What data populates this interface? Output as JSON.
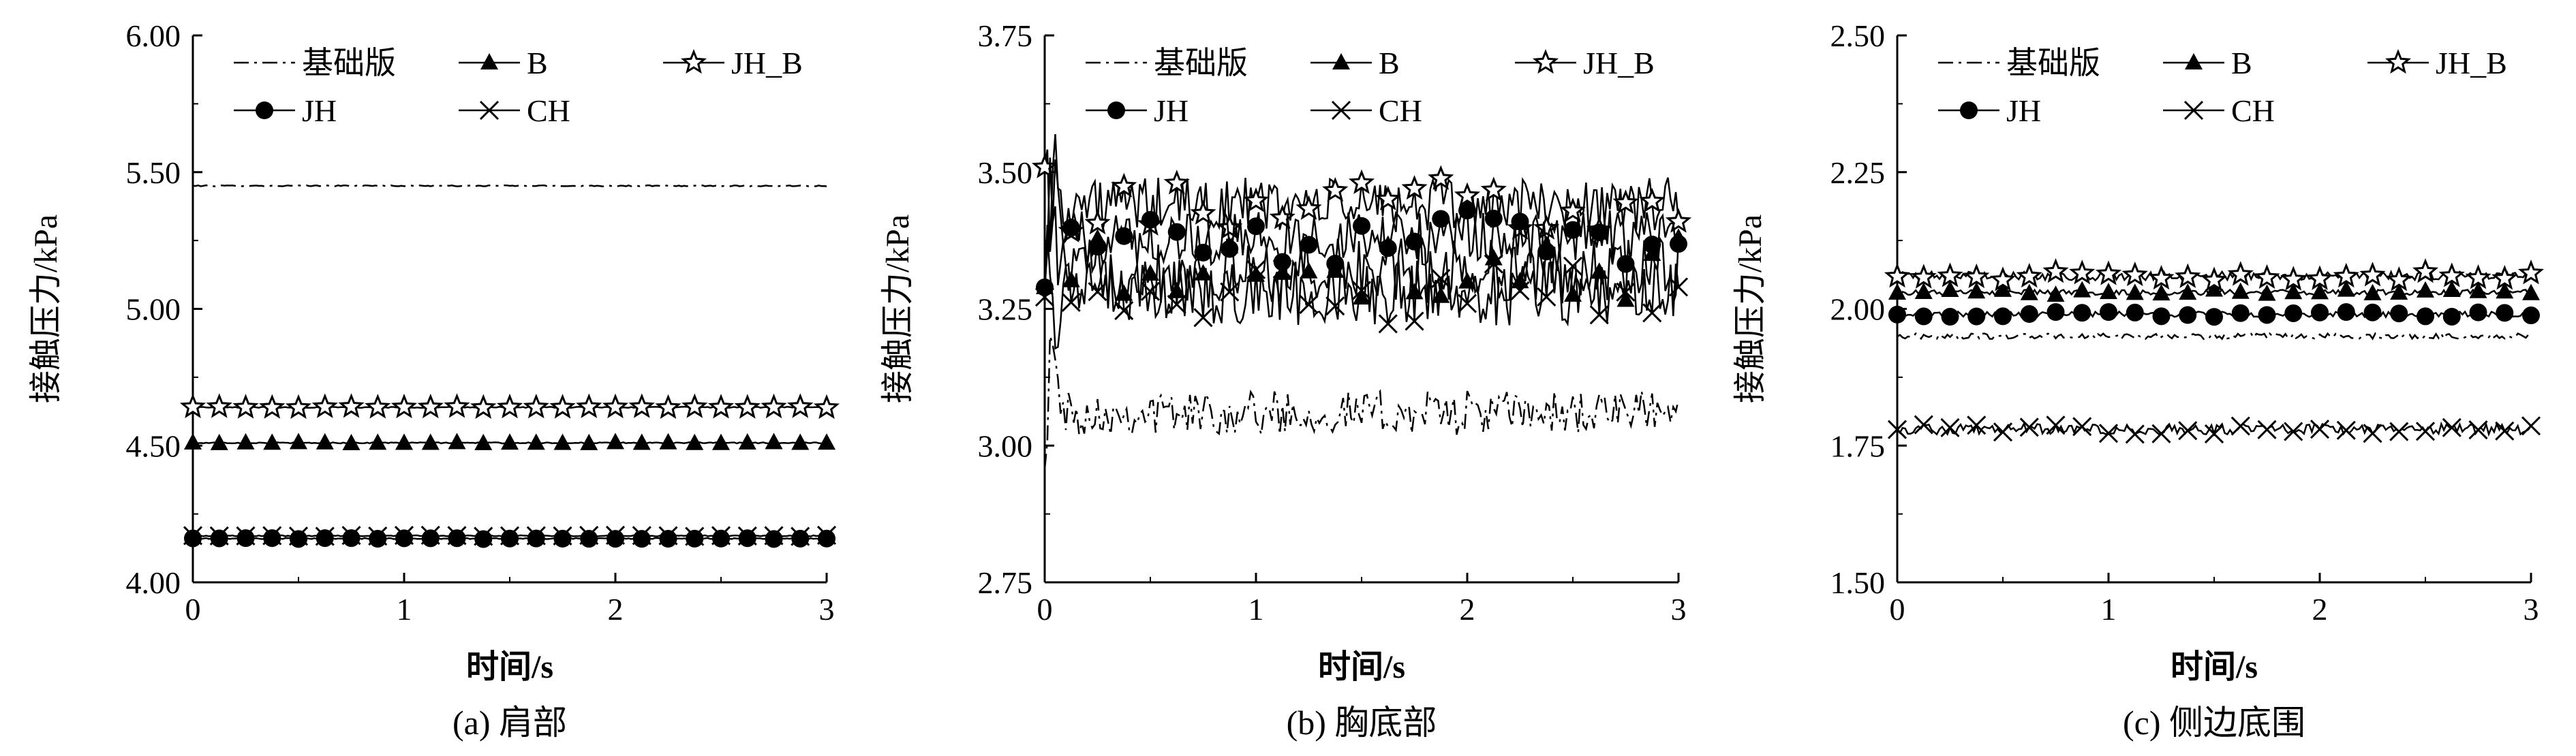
{
  "chart_data": [
    {
      "type": "line",
      "caption": "(a) 肩部",
      "xlabel": "时间/s",
      "ylabel": "接触压力/kPa",
      "xlim": [
        0,
        3
      ],
      "ylim": [
        4.0,
        6.0
      ],
      "xticks": [
        "0",
        "1",
        "2",
        "3"
      ],
      "yticks": [
        "4.00",
        "4.50",
        "5.00",
        "5.50",
        "6.00"
      ],
      "legend_position": "top-left",
      "series": [
        {
          "name": "基础版",
          "marker": "none",
          "dash": "dashdot",
          "mean": 5.45,
          "noise": 0.002,
          "offset": 0.0
        },
        {
          "name": "B",
          "marker": "triangle",
          "dash": "solid",
          "mean": 4.51,
          "noise": 0.002,
          "offset": 0.0
        },
        {
          "name": "JH_B",
          "marker": "star",
          "dash": "solid",
          "mean": 4.64,
          "noise": 0.002,
          "offset": 0.0
        },
        {
          "name": "JH",
          "marker": "circle",
          "dash": "solid",
          "mean": 4.16,
          "noise": 0.002,
          "offset": 0.0
        },
        {
          "name": "CH",
          "marker": "x",
          "dash": "solid",
          "mean": 4.17,
          "noise": 0.002,
          "offset": 0.0
        }
      ]
    },
    {
      "type": "line",
      "caption": "(b) 胸底部",
      "xlabel": "时间/s",
      "ylabel": "接触压力/kPa",
      "xlim": [
        0,
        3
      ],
      "ylim": [
        2.75,
        3.75
      ],
      "xticks": [
        "0",
        "1",
        "2",
        "3"
      ],
      "yticks": [
        "2.75",
        "3.00",
        "3.25",
        "3.50",
        "3.75"
      ],
      "legend_position": "top-left",
      "series": [
        {
          "name": "基础版",
          "marker": "none",
          "dash": "dashdot",
          "mean": 3.06,
          "noise": 0.04,
          "offset": 0.0
        },
        {
          "name": "B",
          "marker": "triangle",
          "dash": "solid",
          "mean": 3.32,
          "noise": 0.06,
          "offset": 0.0
        },
        {
          "name": "JH_B",
          "marker": "star",
          "dash": "solid",
          "mean": 3.44,
          "noise": 0.05,
          "offset": 0.0
        },
        {
          "name": "JH",
          "marker": "circle",
          "dash": "solid",
          "mean": 3.38,
          "noise": 0.05,
          "offset": 0.0
        },
        {
          "name": "CH",
          "marker": "x",
          "dash": "solid",
          "mean": 3.28,
          "noise": 0.06,
          "offset": 0.0
        }
      ]
    },
    {
      "type": "line",
      "caption": "(c) 侧边底围",
      "xlabel": "时间/s",
      "ylabel": "接触压力/kPa",
      "xlim": [
        0,
        3
      ],
      "ylim": [
        1.5,
        2.5
      ],
      "xticks": [
        "0",
        "1",
        "2",
        "3"
      ],
      "yticks": [
        "1.50",
        "1.75",
        "2.00",
        "2.25",
        "2.50"
      ],
      "legend_position": "top-left",
      "series": [
        {
          "name": "基础版",
          "marker": "none",
          "dash": "dashdot",
          "mean": 1.95,
          "noise": 0.005,
          "offset": 0.0
        },
        {
          "name": "B",
          "marker": "triangle",
          "dash": "solid",
          "mean": 2.03,
          "noise": 0.005,
          "offset": 0.0
        },
        {
          "name": "JH_B",
          "marker": "star",
          "dash": "solid",
          "mean": 2.06,
          "noise": 0.008,
          "offset": 0.0
        },
        {
          "name": "JH",
          "marker": "circle",
          "dash": "solid",
          "mean": 1.99,
          "noise": 0.005,
          "offset": 0.0
        },
        {
          "name": "CH",
          "marker": "x",
          "dash": "solid",
          "mean": 1.78,
          "noise": 0.01,
          "offset": 0.0
        }
      ]
    }
  ]
}
